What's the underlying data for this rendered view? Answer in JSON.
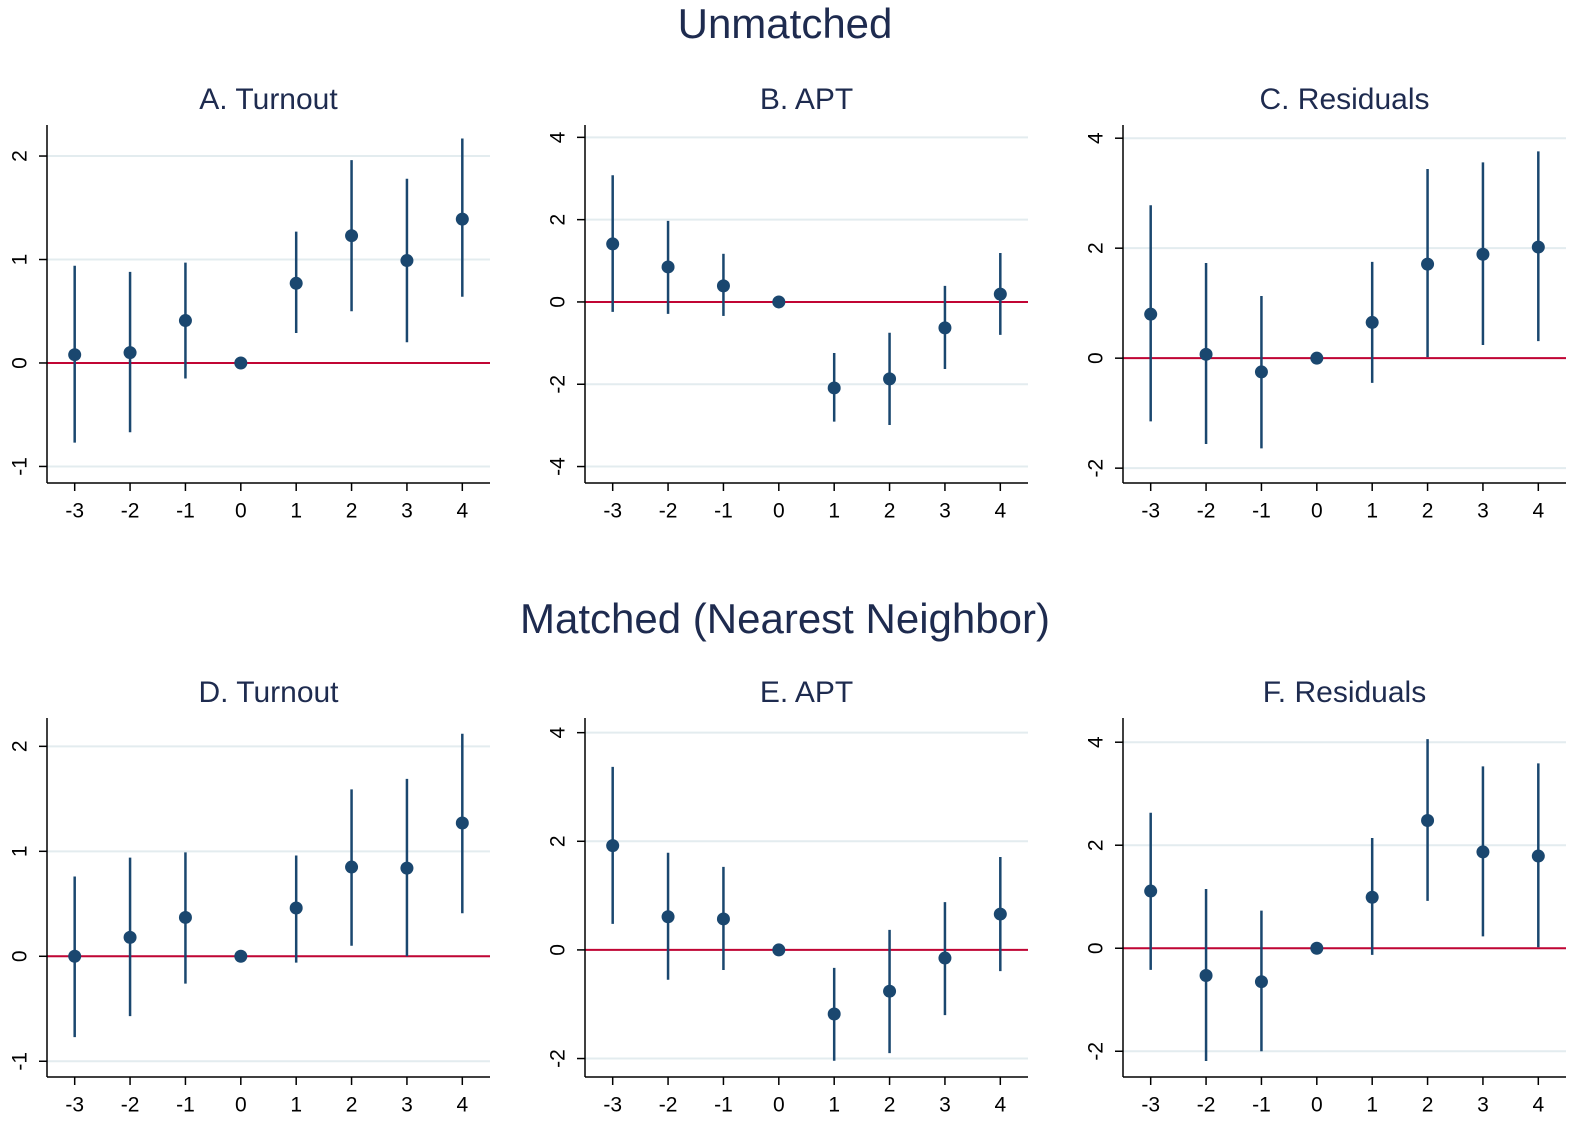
{
  "headings": [
    "Unmatched",
    "Matched (Nearest Neighbor)"
  ],
  "chart_data": [
    {
      "type": "errorbar",
      "title": "A. Turnout",
      "x": [
        -3,
        -2,
        -1,
        0,
        1,
        2,
        3,
        4
      ],
      "values": [
        0.08,
        0.1,
        0.41,
        0,
        0.77,
        1.23,
        0.99,
        1.39
      ],
      "lower": [
        -0.77,
        -0.67,
        -0.15,
        0,
        0.29,
        0.5,
        0.2,
        0.64
      ],
      "upper": [
        0.94,
        0.88,
        0.97,
        0,
        1.27,
        1.96,
        1.78,
        2.17
      ],
      "color": "#1a476f",
      "xlim": [
        -3.5,
        4.5
      ],
      "xticks": [
        -3,
        -2,
        -1,
        0,
        1,
        2,
        3,
        4
      ],
      "ylim": [
        -1.16,
        2.3
      ],
      "yticks": [
        -1,
        0,
        1,
        2
      ],
      "grid": true,
      "refline": 0,
      "refline_color": "#c10534"
    },
    {
      "type": "errorbar",
      "title": "B. APT",
      "x": [
        -3,
        -2,
        -1,
        0,
        1,
        2,
        3,
        4
      ],
      "values": [
        1.41,
        0.85,
        0.39,
        0,
        -2.09,
        -1.87,
        -0.63,
        0.19
      ],
      "lower": [
        -0.24,
        -0.29,
        -0.34,
        0,
        -2.91,
        -2.99,
        -1.63,
        -0.8
      ],
      "upper": [
        3.08,
        1.97,
        1.17,
        0,
        -1.24,
        -0.75,
        0.39,
        1.19
      ],
      "color": "#1a476f",
      "xlim": [
        -3.5,
        4.5
      ],
      "xticks": [
        -3,
        -2,
        -1,
        0,
        1,
        2,
        3,
        4
      ],
      "ylim": [
        -4.4,
        4.3
      ],
      "yticks": [
        -4,
        -2,
        0,
        2,
        4
      ],
      "grid": true,
      "refline": 0,
      "refline_color": "#c10534"
    },
    {
      "type": "errorbar",
      "title": "C. Residuals",
      "x": [
        -3,
        -2,
        -1,
        0,
        1,
        2,
        3,
        4
      ],
      "values": [
        0.8,
        0.07,
        -0.25,
        0,
        0.65,
        1.71,
        1.89,
        2.02
      ],
      "lower": [
        -1.15,
        -1.56,
        -1.64,
        0,
        -0.45,
        0.02,
        0.24,
        0.31
      ],
      "upper": [
        2.78,
        1.73,
        1.13,
        0,
        1.75,
        3.44,
        3.56,
        3.76
      ],
      "color": "#1a476f",
      "xlim": [
        -3.5,
        4.5
      ],
      "xticks": [
        -3,
        -2,
        -1,
        0,
        1,
        2,
        3,
        4
      ],
      "ylim": [
        -2.27,
        4.24
      ],
      "yticks": [
        -2,
        0,
        2,
        4
      ],
      "grid": true,
      "refline": 0,
      "refline_color": "#c10534"
    },
    {
      "type": "errorbar",
      "title": "D. Turnout",
      "x": [
        -3,
        -2,
        -1,
        0,
        1,
        2,
        3,
        4
      ],
      "values": [
        0,
        0.18,
        0.37,
        0,
        0.46,
        0.85,
        0.84,
        1.27
      ],
      "lower": [
        -0.77,
        -0.57,
        -0.26,
        0,
        -0.06,
        0.1,
        0,
        0.41
      ],
      "upper": [
        0.76,
        0.94,
        0.99,
        0,
        0.96,
        1.59,
        1.69,
        2.12
      ],
      "color": "#1a476f",
      "xlim": [
        -3.5,
        4.5
      ],
      "xticks": [
        -3,
        -2,
        -1,
        0,
        1,
        2,
        3,
        4
      ],
      "ylim": [
        -1.15,
        2.27
      ],
      "yticks": [
        -1,
        0,
        1,
        2
      ],
      "grid": true,
      "refline": 0,
      "refline_color": "#c10534"
    },
    {
      "type": "errorbar",
      "title": "E. APT",
      "x": [
        -3,
        -2,
        -1,
        0,
        1,
        2,
        3,
        4
      ],
      "values": [
        1.92,
        0.61,
        0.57,
        0,
        -1.18,
        -0.76,
        -0.15,
        0.66
      ],
      "lower": [
        0.48,
        -0.55,
        -0.37,
        0,
        -2.04,
        -1.9,
        -1.2,
        -0.39
      ],
      "upper": [
        3.37,
        1.79,
        1.53,
        0,
        -0.33,
        0.37,
        0.88,
        1.71
      ],
      "color": "#1a476f",
      "xlim": [
        -3.5,
        4.5
      ],
      "xticks": [
        -3,
        -2,
        -1,
        0,
        1,
        2,
        3,
        4
      ],
      "ylim": [
        -2.34,
        4.27
      ],
      "yticks": [
        -2,
        0,
        2,
        4
      ],
      "grid": true,
      "refline": 0,
      "refline_color": "#c10534"
    },
    {
      "type": "errorbar",
      "title": "F. Residuals",
      "x": [
        -3,
        -2,
        -1,
        0,
        1,
        2,
        3,
        4
      ],
      "values": [
        1.11,
        -0.53,
        -0.65,
        0,
        0.99,
        2.48,
        1.87,
        1.79
      ],
      "lower": [
        -0.42,
        -2.19,
        -2.0,
        0,
        -0.13,
        0.92,
        0.23,
        0.02
      ],
      "upper": [
        2.63,
        1.15,
        0.73,
        0,
        2.14,
        4.06,
        3.53,
        3.59
      ],
      "color": "#1a476f",
      "xlim": [
        -3.5,
        4.5
      ],
      "xticks": [
        -3,
        -2,
        -1,
        0,
        1,
        2,
        3,
        4
      ],
      "ylim": [
        -2.5,
        4.47
      ],
      "yticks": [
        -2,
        0,
        2,
        4
      ],
      "grid": true,
      "refline": 0,
      "refline_color": "#c10534"
    }
  ]
}
